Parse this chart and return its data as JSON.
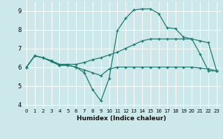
{
  "xlabel": "Humidex (Indice chaleur)",
  "bg_color": "#cce8ea",
  "grid_color": "#ffffff",
  "line_color": "#1a7a6e",
  "xlim": [
    -0.5,
    23.5
  ],
  "ylim": [
    3.8,
    9.5
  ],
  "xticks": [
    0,
    1,
    2,
    3,
    4,
    5,
    6,
    7,
    8,
    9,
    10,
    11,
    12,
    13,
    14,
    15,
    16,
    17,
    18,
    19,
    20,
    21,
    22,
    23
  ],
  "yticks": [
    4,
    5,
    6,
    7,
    8,
    9
  ],
  "line1_x": [
    0,
    1,
    2,
    3,
    4,
    5,
    6,
    7,
    8,
    9,
    10,
    11,
    12,
    13,
    14,
    15,
    16,
    17,
    18,
    19,
    20,
    21,
    22,
    23
  ],
  "line1_y": [
    6.0,
    6.6,
    6.5,
    6.3,
    6.1,
    6.1,
    6.0,
    5.85,
    5.7,
    5.55,
    5.9,
    6.0,
    6.0,
    6.0,
    6.0,
    6.0,
    6.0,
    6.0,
    6.0,
    6.0,
    6.0,
    5.95,
    5.9,
    5.8
  ],
  "line2_x": [
    0,
    1,
    2,
    3,
    4,
    5,
    6,
    7,
    8,
    9,
    10,
    11,
    12,
    13,
    14,
    15,
    16,
    17,
    18,
    19,
    20,
    21,
    22,
    23
  ],
  "line2_y": [
    6.0,
    6.6,
    6.5,
    6.35,
    6.15,
    6.15,
    6.15,
    6.25,
    6.4,
    6.5,
    6.65,
    6.8,
    7.0,
    7.2,
    7.4,
    7.5,
    7.5,
    7.5,
    7.5,
    7.5,
    7.5,
    7.4,
    7.3,
    5.8
  ],
  "line3_x": [
    0,
    1,
    2,
    3,
    4,
    5,
    6,
    7,
    8,
    9,
    10,
    11,
    12,
    13,
    14,
    15,
    16,
    17,
    18,
    19,
    20,
    21,
    22,
    23
  ],
  "line3_y": [
    6.0,
    6.6,
    6.5,
    6.3,
    6.1,
    6.1,
    6.0,
    5.7,
    4.8,
    4.2,
    5.4,
    7.95,
    8.6,
    9.05,
    9.1,
    9.1,
    8.85,
    8.1,
    8.05,
    7.6,
    7.5,
    6.7,
    5.8,
    5.8
  ]
}
